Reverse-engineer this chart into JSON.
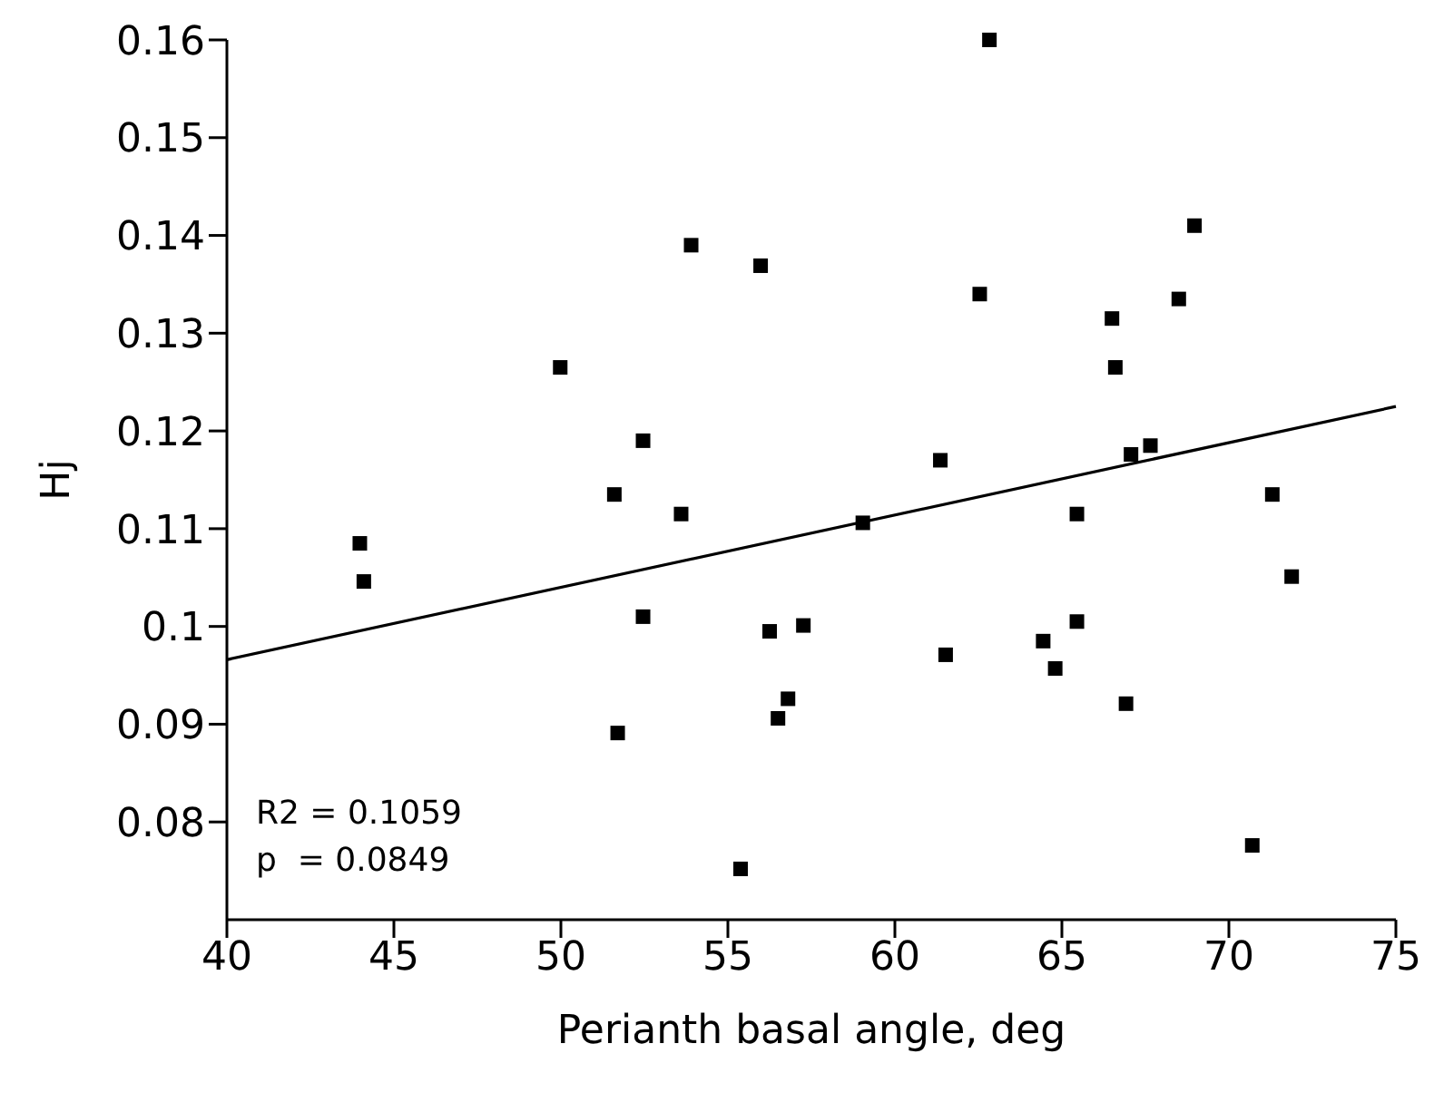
{
  "chart_data": {
    "type": "scatter",
    "xlabel": "Perianth basal angle, deg",
    "ylabel": "Hj",
    "xlim": [
      40,
      75
    ],
    "xticks": [
      40,
      45,
      50,
      55,
      60,
      65,
      70,
      75
    ],
    "ylim": [
      0.07,
      0.16
    ],
    "yticks": [
      0.08,
      0.09,
      0.1,
      0.11,
      0.12,
      0.13,
      0.14,
      0.15,
      0.16
    ],
    "grid": false,
    "marker": "square",
    "annotations": [
      "R2 = 0.1059",
      "p  = 0.0849"
    ],
    "series": [
      {
        "color": "#000000",
        "x": [
          43.98,
          44.1,
          49.98,
          52.46,
          51.6,
          53.6,
          53.9,
          55.98,
          52.46,
          51.7,
          56.25,
          57.26,
          56.8,
          56.5,
          55.38,
          62.83,
          68.97,
          62.54,
          68.5,
          66.5,
          66.6,
          67.65,
          67.07,
          61.36,
          59.04,
          65.45,
          71.3,
          71.88,
          65.45,
          64.44,
          61.52,
          64.8,
          66.92,
          70.7
        ],
        "values": [
          0.1085,
          0.1046,
          0.1265,
          0.119,
          0.1135,
          0.1115,
          0.139,
          0.1369,
          0.101,
          0.0891,
          0.0995,
          0.1001,
          0.0926,
          0.0906,
          0.0752,
          0.16,
          0.141,
          0.134,
          0.1335,
          0.1315,
          0.1265,
          0.1185,
          0.1176,
          0.117,
          0.1106,
          0.1115,
          0.1135,
          0.1051,
          0.1005,
          0.0985,
          0.0971,
          0.0957,
          0.0921,
          0.0776
        ]
      },
      {
        "type": "line",
        "color": "#000000",
        "marker": "none",
        "line_style": "solid",
        "x": [
          40,
          75
        ],
        "values": [
          0.0966,
          0.1225
        ]
      }
    ]
  }
}
